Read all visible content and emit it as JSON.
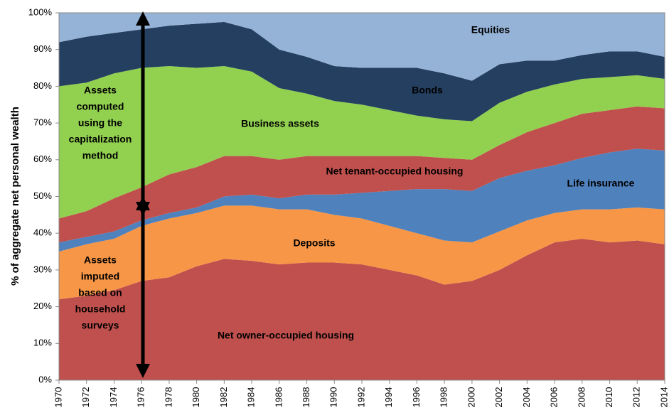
{
  "chart_data": {
    "type": "stacked_area",
    "y_axis_label": "% of aggregate net personal wealth",
    "x": [
      1970,
      1972,
      1974,
      1976,
      1978,
      1980,
      1982,
      1984,
      1986,
      1988,
      1990,
      1992,
      1994,
      1996,
      1998,
      2000,
      2002,
      2004,
      2006,
      2008,
      2010,
      2012,
      2014
    ],
    "series": [
      {
        "name": "Net owner-occupied housing",
        "color": "#c0504d",
        "values": [
          22,
          23,
          24.5,
          27,
          28,
          31,
          33,
          32.5,
          31.5,
          32,
          32,
          31.5,
          30,
          28.5,
          26,
          27,
          30,
          34,
          37.5,
          38.5,
          37.5,
          38,
          37
        ]
      },
      {
        "name": "Deposits",
        "color": "#f79646",
        "values": [
          13,
          14,
          14,
          15,
          16,
          14.5,
          14.5,
          15,
          15,
          14.5,
          13,
          12.5,
          12,
          11.5,
          12,
          10.5,
          10.5,
          9.5,
          8,
          8,
          9,
          9,
          9.5
        ]
      },
      {
        "name": "Life insurance",
        "color": "#4f81bd",
        "values": [
          2.5,
          2,
          2,
          1.5,
          1.5,
          1.5,
          2.5,
          3,
          3,
          4,
          5.5,
          7,
          9.5,
          12,
          14,
          14,
          14.5,
          13.5,
          13,
          14,
          15.5,
          16,
          16
        ]
      },
      {
        "name": "Net tenant-occupied housing",
        "color": "#c0504d",
        "values": [
          6.5,
          7,
          9,
          9,
          10.5,
          11,
          11,
          10.5,
          10.5,
          10.5,
          10.5,
          10,
          9.5,
          9,
          8.5,
          8.5,
          9,
          10.5,
          11.5,
          12,
          11.5,
          11.5,
          11.5
        ]
      },
      {
        "name": "Business assets",
        "color": "#92d050",
        "values": [
          36,
          35,
          34,
          32.5,
          29.5,
          27,
          24.5,
          23,
          19.5,
          17,
          15,
          14,
          12.5,
          11,
          10.5,
          10.5,
          11.5,
          11,
          10.5,
          9.5,
          9,
          8.5,
          8
        ]
      },
      {
        "name": "Bonds",
        "color": "#243f60",
        "values": [
          12,
          12.5,
          11,
          10.5,
          11,
          12,
          12,
          11.5,
          10.5,
          10,
          9.5,
          10,
          11.5,
          13,
          12.5,
          11,
          10.5,
          8.5,
          6.5,
          6.5,
          7,
          6.5,
          6
        ]
      },
      {
        "name": "Equities",
        "color": "#95b3d7",
        "values": [
          8,
          6.5,
          5.5,
          4.5,
          3.5,
          3,
          2.5,
          4.5,
          10,
          12,
          14.5,
          15,
          15,
          15,
          16.5,
          18.5,
          14,
          13,
          13,
          11.5,
          10.5,
          10.5,
          12
        ]
      }
    ],
    "annotations": [
      [
        "Assets",
        "computed",
        "using the",
        "capitalization",
        "method"
      ],
      [
        "Assets",
        "imputed",
        "based on",
        "household",
        "surveys"
      ]
    ],
    "xlim": [
      1970,
      2014
    ],
    "xticks": [
      1970,
      1972,
      1974,
      1976,
      1978,
      1980,
      1982,
      1984,
      1986,
      1988,
      1990,
      1992,
      1994,
      1996,
      1998,
      2000,
      2002,
      2004,
      2006,
      2008,
      2010,
      2012,
      2014
    ],
    "ylim": [
      0,
      100
    ],
    "yticks": [
      {
        "value": 0,
        "label": "0%"
      },
      {
        "value": 10,
        "label": "10%"
      },
      {
        "value": 20,
        "label": "20%"
      },
      {
        "value": 30,
        "label": "30%"
      },
      {
        "value": 40,
        "label": "40%"
      },
      {
        "value": 50,
        "label": "50%"
      },
      {
        "value": 60,
        "label": "60%"
      },
      {
        "value": 70,
        "label": "70%"
      },
      {
        "value": 80,
        "label": "80%"
      },
      {
        "value": 90,
        "label": "90%"
      },
      {
        "value": 100,
        "label": "100%"
      }
    ],
    "grid": false
  }
}
